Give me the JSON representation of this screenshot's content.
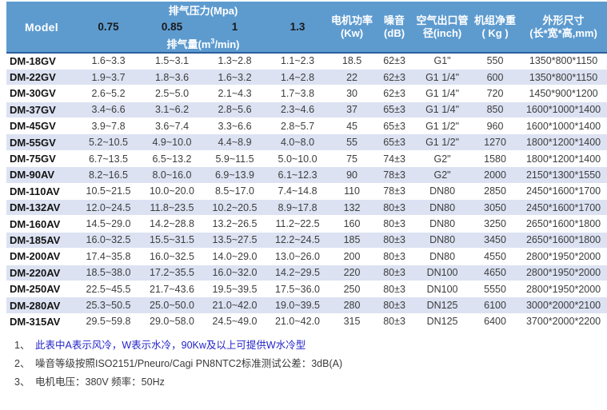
{
  "colors": {
    "header_bg": "#5d9bcf",
    "header_border": "#2b5f9e",
    "stripe_bg": "#dce2f2"
  },
  "table": {
    "header": {
      "model": "Model",
      "pressure_group": "排气压力(Mpa)",
      "pressures": [
        "0.75",
        "0.85",
        "1",
        "1.3"
      ],
      "capacity_prefix": "排气量(m",
      "capacity_sup": "3",
      "capacity_suffix": "/min)",
      "motor_power_line1": "电机功率",
      "motor_power_line2": "(Kw)",
      "noise_line1": "噪音",
      "noise_line2": "(dB)",
      "outlet_line1": "空气出口管",
      "outlet_line2": "径(inch)",
      "weight_line1": "机组净重",
      "weight_line2": "( Kg )",
      "dims_line1": "外形尺寸",
      "dims_line2": "(长*宽*高,mm)"
    },
    "column_order": [
      "model",
      "flow_075",
      "flow_085",
      "flow_100",
      "flow_130",
      "power_kw",
      "noise_db",
      "outlet",
      "weight_kg",
      "dimensions"
    ],
    "rows": [
      {
        "model": "DM-18GV",
        "flow_075": "1.6~3.3",
        "flow_085": "1.5~3.1",
        "flow_100": "1.3~2.8",
        "flow_130": "1.1~2.3",
        "power_kw": "18.5",
        "noise_db": "62±3",
        "outlet": "G1\"",
        "weight_kg": "550",
        "dimensions": "1350*800*1150"
      },
      {
        "model": "DM-22GV",
        "flow_075": "1.9~3.7",
        "flow_085": "1.8~3.6",
        "flow_100": "1.6~3.2",
        "flow_130": "1.4~2.8",
        "power_kw": "22",
        "noise_db": "62±3",
        "outlet": "G1 1/4\"",
        "weight_kg": "600",
        "dimensions": "1350*800*1150"
      },
      {
        "model": "DM-30GV",
        "flow_075": "2.6~5.2",
        "flow_085": "2.5~5.0",
        "flow_100": "2.1~4.3",
        "flow_130": "1.7~3.8",
        "power_kw": "30",
        "noise_db": "62±3",
        "outlet": "G1 1/4\"",
        "weight_kg": "720",
        "dimensions": "1450*900*1200"
      },
      {
        "model": "DM-37GV",
        "flow_075": "3.4~6.6",
        "flow_085": "3.1~6.2",
        "flow_100": "2.8~5.6",
        "flow_130": "2.3~4.6",
        "power_kw": "37",
        "noise_db": "65±3",
        "outlet": "G1 1/4\"",
        "weight_kg": "850",
        "dimensions": "1600*1000*1400"
      },
      {
        "model": "DM-45GV",
        "flow_075": "3.9~7.8",
        "flow_085": "3.6~7.4",
        "flow_100": "3.3~6.6",
        "flow_130": "2.8~5.7",
        "power_kw": "45",
        "noise_db": "65±3",
        "outlet": "G1 1/2\"",
        "weight_kg": "960",
        "dimensions": "1600*1000*1400"
      },
      {
        "model": "DM-55GV",
        "flow_075": "5.2~10.5",
        "flow_085": "4.9~10.0",
        "flow_100": "4.4~8.9",
        "flow_130": "4.0~8.0",
        "power_kw": "55",
        "noise_db": "65±3",
        "outlet": "G1 1/2\"",
        "weight_kg": "1270",
        "dimensions": "1800*1200*1400"
      },
      {
        "model": "DM-75GV",
        "flow_075": "6.7~13.5",
        "flow_085": "6.5~13.2",
        "flow_100": "5.9~11.5",
        "flow_130": "5.0~10.0",
        "power_kw": "75",
        "noise_db": "74±3",
        "outlet": "G2\"",
        "weight_kg": "1580",
        "dimensions": "1800*1200*1400"
      },
      {
        "model": "DM-90AV",
        "flow_075": "8.2~16.5",
        "flow_085": "8.0~16.0",
        "flow_100": "6.9~13.9",
        "flow_130": "6.1~12.3",
        "power_kw": "90",
        "noise_db": "78±3",
        "outlet": "G2\"",
        "weight_kg": "2000",
        "dimensions": "2150*1300*1550"
      },
      {
        "model": "DM-110AV",
        "flow_075": "10.5~21.5",
        "flow_085": "10.0~20.0",
        "flow_100": "8.5~17.0",
        "flow_130": "7.4~14.8",
        "power_kw": "110",
        "noise_db": "78±3",
        "outlet": "DN80",
        "weight_kg": "2850",
        "dimensions": "2450*1600*1700"
      },
      {
        "model": "DM-132AV",
        "flow_075": "12.0~24.5",
        "flow_085": "11.8~23.5",
        "flow_100": "10.2~20.5",
        "flow_130": "8.9~17.8",
        "power_kw": "132",
        "noise_db": "80±3",
        "outlet": "DN80",
        "weight_kg": "3050",
        "dimensions": "2450*1600*1700"
      },
      {
        "model": "DM-160AV",
        "flow_075": "14.5~29.0",
        "flow_085": "14.2~28.8",
        "flow_100": "13.2~26.5",
        "flow_130": "11.2~22.5",
        "power_kw": "160",
        "noise_db": "80±3",
        "outlet": "DN80",
        "weight_kg": "3250",
        "dimensions": "2650*1600*1800"
      },
      {
        "model": "DM-185AV",
        "flow_075": "16.0~32.5",
        "flow_085": "15.5~31.5",
        "flow_100": "13.5~27.5",
        "flow_130": "12.2~24.5",
        "power_kw": "185",
        "noise_db": "80±3",
        "outlet": "DN80",
        "weight_kg": "3450",
        "dimensions": "2650*1600*1800"
      },
      {
        "model": "DM-200AV",
        "flow_075": "17.4~35.8",
        "flow_085": "16.0~32.5",
        "flow_100": "14.0~29.0",
        "flow_130": "13.0~26.0",
        "power_kw": "200",
        "noise_db": "80±3",
        "outlet": "DN80",
        "weight_kg": "4550",
        "dimensions": "2800*1950*2000"
      },
      {
        "model": "DM-220AV",
        "flow_075": "18.5~38.0",
        "flow_085": "17.2~35.5",
        "flow_100": "16.0~32.0",
        "flow_130": "14.2~29.5",
        "power_kw": "220",
        "noise_db": "80±3",
        "outlet": "DN100",
        "weight_kg": "4650",
        "dimensions": "2800*1950*2000"
      },
      {
        "model": "DM-250AV",
        "flow_075": "22.5~45.5",
        "flow_085": "21.7~43.6",
        "flow_100": "19.5~39.5",
        "flow_130": "17.5~36.0",
        "power_kw": "250",
        "noise_db": "80±3",
        "outlet": "DN100",
        "weight_kg": "5550",
        "dimensions": "2800*1950*2000"
      },
      {
        "model": "DM-280AV",
        "flow_075": "25.3~50.5",
        "flow_085": "25.0~50.0",
        "flow_100": "21.0~42.0",
        "flow_130": "19.0~39.5",
        "power_kw": "280",
        "noise_db": "80±3",
        "outlet": "DN125",
        "weight_kg": "6100",
        "dimensions": "3000*2000*2100"
      },
      {
        "model": "DM-315AV",
        "flow_075": "29.5~59.8",
        "flow_085": "29.0~58.0",
        "flow_100": "24.5~49.0",
        "flow_130": "21.0~42.0",
        "power_kw": "315",
        "noise_db": "80±3",
        "outlet": "DN125",
        "weight_kg": "6400",
        "dimensions": "3700*2000*2200"
      }
    ]
  },
  "notes": [
    {
      "num": "1、",
      "text": "此表中A表示风冷，W表示水冷，90Kw及以上可提供W水冷型",
      "color": "#2323c8"
    },
    {
      "num": "2、",
      "text": "噪音等级按照ISO2151/Pneuro/Cagi PN8NTC2标准测试公差：3dB(A)",
      "color": "#3a3a3a"
    },
    {
      "num": "3、",
      "text": "电机电压：380V 频率：50Hz",
      "color": "#3a3a3a"
    }
  ]
}
